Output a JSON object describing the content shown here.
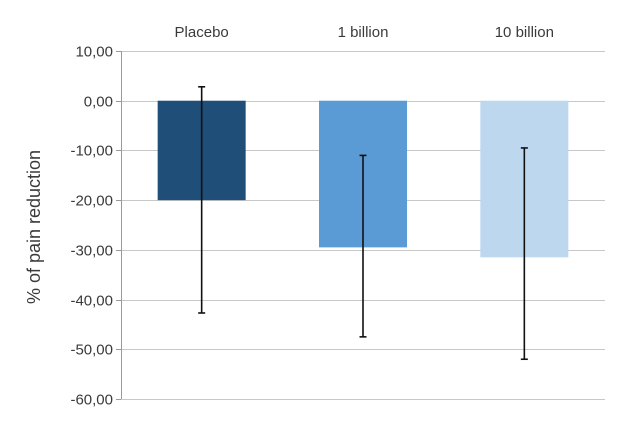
{
  "chart_data": {
    "type": "bar",
    "title": "",
    "xlabel": "",
    "ylabel": "% of pain reduction",
    "categories": [
      "Placebo",
      "1 billion",
      "10 billion"
    ],
    "values": [
      -20,
      -29.5,
      -31.5
    ],
    "error_low": [
      -42.7,
      -47.5,
      -52.0
    ],
    "error_high": [
      2.8,
      -11.0,
      -9.5
    ],
    "colors": [
      "#1f4e79",
      "#5b9bd5",
      "#bdd7ee"
    ],
    "ylim": [
      -60,
      10
    ],
    "yticks": [
      10,
      0,
      -10,
      -20,
      -30,
      -40,
      -50,
      -60
    ],
    "ytick_labels": [
      "10,00",
      "0,00",
      "-10,00",
      "-20,00",
      "-30,00",
      "-40,00",
      "-50,00",
      "-60,00"
    ],
    "grid": true,
    "category_labels_position": "top"
  }
}
